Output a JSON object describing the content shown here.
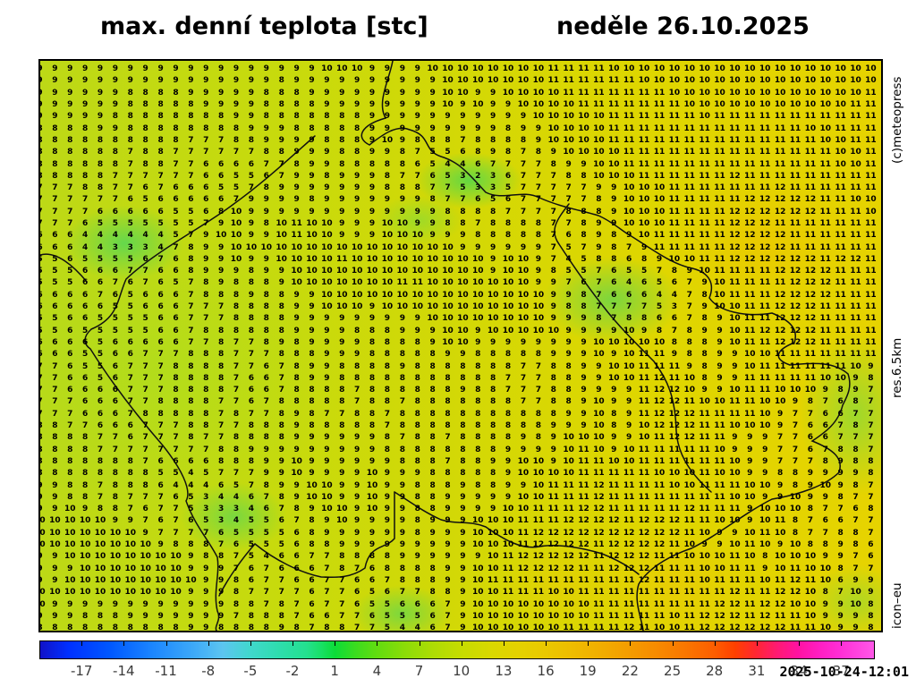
{
  "title": {
    "left": "max. denní teplota [stc]",
    "right": "neděle 26.10.2025"
  },
  "side_labels": {
    "top": "(c)meteopress",
    "middle": "res.6.5km",
    "bottom": "icon–eu"
  },
  "timestamp": "2025-10-24-12:01",
  "chart_data": {
    "type": "heatmap",
    "title": "max. denní teplota [stc]",
    "subtitle": "neděle 26.10.2025",
    "units": "°C",
    "value_range_shown": [
      2,
      12
    ],
    "grid_size": {
      "columns": 57,
      "rows": 48
    },
    "legend": {
      "position": "bottom",
      "tmin": -20,
      "tmax": 39.4,
      "tick_labels": [
        -17,
        -14,
        -11,
        -8,
        -5,
        -2,
        1,
        4,
        7,
        10,
        13,
        16,
        19,
        22,
        25,
        28,
        31,
        34,
        37
      ]
    },
    "colorbar_stops": [
      {
        "t": -20,
        "color": "#1012c8"
      },
      {
        "t": -18,
        "color": "#0030ff"
      },
      {
        "t": -15,
        "color": "#0058ff"
      },
      {
        "t": -12,
        "color": "#1c86ff"
      },
      {
        "t": -9,
        "color": "#3eaaf8"
      },
      {
        "t": -7,
        "color": "#5cc5f0"
      },
      {
        "t": -5,
        "color": "#40d8cc"
      },
      {
        "t": -3,
        "color": "#2eddae"
      },
      {
        "t": -1,
        "color": "#24e08e"
      },
      {
        "t": 0,
        "color": "#18e066"
      },
      {
        "t": 1,
        "color": "#0cdc38"
      },
      {
        "t": 2.5,
        "color": "#3cdc1e"
      },
      {
        "t": 4,
        "color": "#62dc10"
      },
      {
        "t": 6,
        "color": "#8cdc08"
      },
      {
        "t": 8,
        "color": "#aedc04"
      },
      {
        "t": 10,
        "color": "#c6dc00"
      },
      {
        "t": 12,
        "color": "#d8d800"
      },
      {
        "t": 14,
        "color": "#e4d200"
      },
      {
        "t": 16,
        "color": "#eac800"
      },
      {
        "t": 18,
        "color": "#eebc00"
      },
      {
        "t": 20,
        "color": "#f1ad00"
      },
      {
        "t": 22,
        "color": "#f49c00"
      },
      {
        "t": 24,
        "color": "#f78a00"
      },
      {
        "t": 26,
        "color": "#fa7600"
      },
      {
        "t": 28,
        "color": "#fd5e00"
      },
      {
        "t": 29.5,
        "color": "#ff4000"
      },
      {
        "t": 31,
        "color": "#ff2633"
      },
      {
        "t": 32.5,
        "color": "#ff1a72"
      },
      {
        "t": 34,
        "color": "#ff12a2"
      },
      {
        "t": 35.5,
        "color": "#ff1ec2"
      },
      {
        "t": 37,
        "color": "#ff2ed6"
      },
      {
        "t": 39.4,
        "color": "#ff58e8"
      }
    ],
    "grid_rows": [
      "9 9 9 9 9 9 9 9 9 9 9 9 9 9 9 9 9 9 9 10 10 10 9 9 9 9 10 10 10 10 10 10 10 10 11 11 11 11 10 10 10 10 10 10 10 10 10 10 10 10 10 10 10 10 10 10 10",
      "9 9 9 9 9 9 9 9 9 9 9 9 9 9 9 9 8 9 9 9 9 9 9 9 9 9 9 10 10 10 10 10 10 10 11 11 11 11 11 11 10 10 10 10 10 10 10 10 10 10 10 10 10 10 10 10 10",
      "9 9 9 9 9 9 8 8 8 8 9 9 9 9 9 8 8 8 9 9 9 9 9 9 9 9 9 10 10 9 9 10 10 10 10 11 11 11 11 11 11 11 10 10 10 10 10 10 10 10 10 10 10 10 10 11 10",
      "9 9 9 9 9 9 8 8 8 8 8 9 9 9 9 8 8 8 8 9 9 9 9 9 9 9 9 10 9 10 9 9 10 10 10 10 11 11 11 11 11 11 11 10 10 10 10 10 10 10 10 10 10 10 11 11 11",
      "9 9 9 9 9 8 8 8 8 8 8 8 8 9 9 8 8 8 8 8 8 8 9 9 9 9 9 9 9 9 9 9 9 10 10 10 10 10 11 11 11 11 11 11 10 11 11 11 11 11 11 11 11 11 11 11 11",
      "8 8 8 8 9 9 8 8 8 8 8 8 8 8 9 9 9 8 8 8 8 8 9 9 9 9 9 9 9 9 9 8 9 9 10 10 10 10 11 11 11 11 11 11 11 11 11 11 11 11 11 10 10 11 11 11 11",
      "8 8 8 8 8 8 8 8 8 8 7 7 7 8 8 9 9 9 9 8 8 8 9 10 9 8 8 8 7 8 8 8 8 9 10 10 10 10 11 11 11 11 11 11 11 11 11 11 11 11 11 11 10 10 11 11 11",
      "8 8 8 8 8 8 7 8 8 7 7 7 7 7 7 8 8 9 9 9 8 8 9 9 8 7 5 5 6 8 9 8 7 8 9 10 10 10 10 11 11 11 11 11 11 11 11 11 11 11 11 11 11 10 10 11 11",
      "8 8 8 8 8 8 7 8 8 7 7 6 6 6 6 7 7 8 9 9 8 8 8 8 8 6 5 4 4 6 7 7 7 7 8 9 9 10 10 11 11 11 11 11 11 11 11 11 11 11 11 11 11 10 10 11 11",
      "8 8 8 8 8 7 7 7 7 7 7 6 6 5 5 6 7 9 9 8 9 9 9 8 7 7 6 5 3 2 3 6 7 7 7 8 8 10 10 10 11 11 11 11 11 11 12 11 11 11 11 11 11 11 11 11 10",
      "7 7 7 8 8 7 7 6 7 6 6 6 5 5 7 8 9 9 9 9 9 9 9 8 8 8 7 7 5 3 3 5 7 7 7 7 7 9 9 10 10 10 11 11 11 11 11 11 11 12 11 11 11 11 11 11 10",
      "7 7 7 7 7 7 6 5 6 6 6 6 6 7 9 9 9 9 8 9 9 9 9 9 9 9 8 7 7 6 5 6 7 7 7 7 7 8 9 10 10 10 11 11 11 11 11 12 12 12 12 12 11 11 10 10 10",
      "7 7 7 7 6 6 6 6 6 5 5 6 8 10 9 9 9 9 9 9 9 9 9 9 9 9 9 8 8 8 8 7 7 7 7 8 8 8 9 10 10 10 11 11 11 11 12 12 12 12 12 12 11 11 11 10 10",
      "7 7 7 6 5 5 5 5 5 5 5 7 9 10 9 8 10 11 10 10 9 9 9 10 10 9 9 8 8 7 8 8 8 8 7 7 8 9 9 10 10 10 11 11 11 11 12 12 12 11 11 11 11 11 11 11 11",
      "6 6 6 4 4 4 4 4 4 5 7 9 10 10 9 9 10 11 10 10 9 9 9 10 10 10 9 9 9 8 8 8 8 8 7 6 8 9 8 9 10 11 11 11 11 11 12 12 12 12 11 11 11 11 11 11 11",
      "6 6 6 4 4 3 3 3 4 7 8 9 9 10 10 10 10 10 10 10 10 10 10 10 10 10 10 10 9 9 9 9 9 9 7 5 7 9 8 7 9 11 11 11 11 11 12 12 12 12 11 11 11 11 11 11 11",
      "5 5 6 5 5 5 5 6 7 6 8 9 9 10 9 9 10 10 10 10 11 10 10 10 10 10 10 10 10 10 9 10 10 9 7 4 5 8 8 6 8 9 10 10 11 11 12 12 12 12 12 12 11 12 12 11 11",
      "5 5 5 6 6 6 7 7 6 6 8 9 9 9 8 9 9 10 10 10 10 10 10 10 10 10 10 10 10 10 9 10 10 9 8 5 5 7 6 5 5 7 8 9 10 11 11 11 11 12 12 12 12 11 11 11 11",
      "5 5 5 6 6 7 6 7 6 5 7 8 9 8 8 8 9 10 10 10 10 10 10 10 11 11 10 10 10 10 10 10 10 9 9 7 6 7 6 4 6 5 6 7 9 10 11 11 11 11 12 12 12 11 11 11 11",
      "6 6 6 6 7 6 5 6 6 6 7 8 8 8 9 8 8 9 9 10 10 10 10 10 10 10 10 10 10 10 10 10 10 10 9 9 8 7 6 6 6 4 4 7 8 10 11 11 11 12 12 12 12 11 11 11 11",
      "6 6 6 6 6 5 5 6 6 6 7 7 7 8 8 8 8 9 9 10 10 10 9 10 10 10 10 10 10 10 10 10 10 10 9 8 8 7 7 7 7 5 3 7 9 10 10 11 11 12 12 12 11 11 11 11 11",
      "5 5 6 6 5 5 5 5 6 6 7 7 7 8 8 8 8 9 9 9 9 9 9 9 9 9 10 10 10 10 10 10 10 10 9 9 9 8 7 8 8 6 6 7 8 9 10 11 11 12 12 12 11 11 11 11 11",
      "5 5 6 5 5 5 5 5 6 6 7 8 8 8 8 8 8 9 9 9 9 8 8 8 9 9 9 10 10 9 10 10 10 10 10 9 9 9 9 10 9 8 7 8 9 9 10 11 12 12 12 12 11 11 11 11 11",
      "6 6 6 6 5 6 6 6 6 6 7 7 8 7 7 8 9 8 9 9 9 9 8 8 8 8 9 10 10 9 9 9 9 9 9 9 9 10 10 10 10 10 8 8 8 9 10 11 11 12 12 12 11 11 11 11 11",
      "6 6 6 5 5 6 6 7 7 7 8 8 8 7 7 7 8 8 8 9 9 9 8 8 8 8 8 9 9 8 8 8 8 8 9 9 9 10 9 10 11 11 9 8 8 9 9 10 10 11 11 11 11 11 11 11 11",
      "7 7 6 5 5 6 7 7 7 8 8 8 8 7 7 6 7 8 9 9 8 8 8 8 9 8 8 8 8 8 8 8 7 7 8 8 9 9 10 10 11 11 11 9 8 9 9 10 11 11 11 11 11 11 10 9 8",
      "7 7 6 6 5 6 7 7 7 8 8 8 8 7 6 6 7 8 9 9 8 8 8 8 8 8 8 8 8 8 8 7 7 7 8 8 9 9 10 10 11 12 11 10 8 9 9 11 11 11 11 11 10 10 9 8 6",
      "7 7 6 6 6 6 7 7 7 8 8 8 8 7 6 6 7 8 8 8 8 7 8 8 8 8 8 8 9 8 8 7 7 7 8 8 9 9 9 9 11 12 12 10 9 9 10 11 11 10 10 10 9 8 9 7 6",
      "7 7 7 6 6 6 7 7 8 8 8 8 7 7 6 7 8 8 8 8 8 7 8 8 7 8 8 8 8 8 8 8 7 7 8 8 9 10 9 9 11 12 12 11 10 10 11 11 10 10 9 8 7 6 8 7 7",
      "7 7 7 6 6 6 7 8 8 8 8 8 7 8 7 7 8 9 8 7 7 8 8 7 8 8 8 8 8 8 8 8 8 8 8 9 9 10 8 9 11 12 12 12 11 11 11 11 10 9 7 7 6 6 7 7 7",
      "8 8 7 7 6 6 6 7 7 7 8 8 7 7 8 8 8 9 8 8 8 8 8 7 8 8 8 8 8 8 8 8 8 8 9 9 9 10 8 9 10 12 12 12 11 11 10 10 10 9 7 6 6 7 8 7 5",
      "8 8 8 8 7 7 6 7 7 7 8 7 7 8 8 8 8 9 9 9 9 9 9 8 7 8 8 7 8 8 8 8 9 8 9 10 10 10 9 9 10 11 12 12 11 11 9 9 9 7 7 6 6 7 7 7 5",
      "8 8 8 8 7 7 7 7 7 7 7 7 8 8 9 9 9 9 9 9 9 9 9 8 8 8 8 8 8 8 8 9 9 9 9 10 11 10 9 10 11 11 11 11 11 10 9 9 9 7 7 6 7 8 8 7 6",
      "8 8 8 8 8 8 8 7 6 6 6 6 8 8 8 9 9 10 9 9 9 9 9 9 8 8 8 7 8 8 9 9 10 10 9 10 11 11 10 10 11 11 11 11 11 11 10 9 9 7 7 7 8 9 8 8 7",
      "8 8 8 8 8 8 8 8 5 5 4 5 7 7 7 9 9 10 9 9 9 9 10 9 9 9 8 8 8 8 8 9 10 10 10 10 11 11 11 11 11 10 10 10 11 10 10 9 9 8 8 9 9 9 9 8 5",
      "9 9 8 8 7 8 8 8 6 4 4 4 6 5 7 8 9 9 10 10 9 9 10 9 9 8 8 8 9 8 8 9 9 10 11 11 11 12 11 11 11 11 10 10 11 11 11 10 10 9 8 9 10 9 8 7 6",
      "9 9 8 8 7 8 7 7 7 6 5 3 4 4 6 7 8 9 10 10 9 9 10 9 9 8 8 9 9 9 9 9 10 10 11 11 11 12 11 11 11 11 11 11 11 11 10 10 9 9 10 9 9 8 7 7 7",
      "9 9 10 9 8 8 7 6 7 7 5 3 3 3 4 6 7 8 9 10 10 9 10 9 9 8 8 9 9 9 9 10 10 11 11 11 12 12 11 11 11 11 11 12 11 11 11 9 10 10 10 8 7 7 6 8 8",
      "10 10 10 10 10 9 9 7 6 7 6 5 3 4 5 5 6 7 8 9 10 9 9 9 9 8 9 9 9 10 10 10 11 11 11 12 12 12 12 11 12 12 12 11 11 10 10 9 10 11 8 7 6 6 7 7 5",
      "10 10 10 10 10 10 10 9 7 7 7 7 6 5 5 5 5 6 8 9 9 9 9 9 9 8 9 9 9 10 10 10 11 12 12 12 12 12 12 12 12 12 12 11 10 9 9 10 11 10 8 7 7 8 8 7 4",
      "10 10 10 10 10 10 10 10 9 8 8 8 7 6 5 5 5 6 8 8 9 9 9 9 9 9 9 9 9 10 10 10 11 12 12 12 12 11 12 12 12 12 11 10 9 9 10 11 10 9 10 8 8 9 8 6 6",
      "9 9 10 10 10 10 10 10 10 10 9 8 8 7 5 4 6 6 7 7 8 8 8 8 9 9 9 9 9 9 10 11 12 12 12 12 12 11 12 12 12 11 11 10 10 10 11 10 8 10 10 10 9 9 7 6 6",
      "9 9 9 10 10 10 10 10 10 10 9 9 9 7 6 7 6 6 6 7 8 7 6 8 8 8 8 9 9 10 10 11 12 12 12 12 11 11 12 12 12 11 11 11 10 10 11 11 9 10 11 10 10 8 7 7 6",
      "9 9 10 10 10 10 10 10 10 10 10 9 9 8 6 7 7 6 6 7 7 6 6 7 8 8 8 9 9 10 11 11 11 11 11 11 11 11 11 11 12 11 11 11 10 11 11 11 10 11 12 11 10 6 9 9 8",
      "10 10 10 10 10 10 10 10 10 10 9 9 9 8 7 7 7 7 6 7 7 6 5 6 7 7 8 8 9 10 10 11 11 11 10 10 11 11 11 11 11 11 11 11 11 11 12 11 11 12 12 10 8 7 10 9 9",
      "10 9 9 9 9 9 9 9 9 9 9 9 9 8 8 7 8 7 6 7 7 6 5 5 6 6 6 7 9 10 10 10 10 10 10 10 10 11 11 11 11 11 11 11 11 12 12 11 12 12 10 10 9 9 10 8 8",
      "9 9 9 8 8 8 9 9 9 9 9 9 9 7 8 8 8 7 6 6 7 7 6 5 5 5 6 7 9 10 10 10 10 10 10 10 10 11 11 11 11 11 10 11 12 12 12 11 12 11 11 10 9 9 9 8 8",
      "8 8 8 8 8 8 8 8 8 8 9 9 8 8 8 8 9 8 7 8 8 7 7 5 4 4 6 7 9 10 10 10 10 10 10 11 11 11 11 12 11 10 10 11 12 12 12 12 12 12 11 11 10 9 9 8 9"
    ]
  }
}
